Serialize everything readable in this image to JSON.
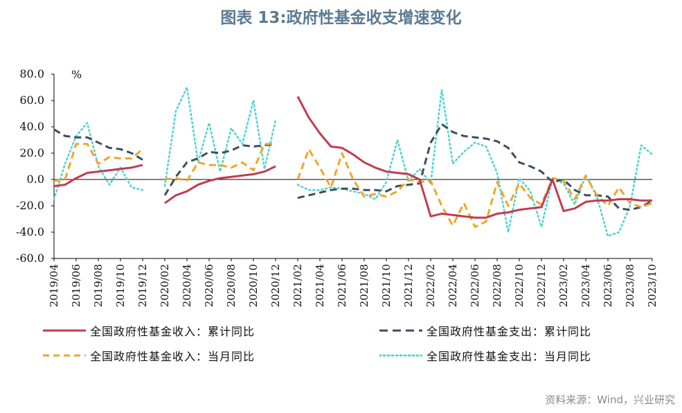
{
  "title": "图表 13:政府性基金收支增速变化",
  "source": "资料来源：Wind，兴业研究",
  "colors": {
    "revenue_cum": "#c23b4f",
    "expense_cum": "#3b4d63",
    "revenue_month": "#f0a528",
    "expense_month": "#55d3d3"
  },
  "chart_data": {
    "type": "line",
    "ylabel": "%",
    "ylim": [
      -60,
      80
    ],
    "yticks": [
      "80.0",
      "60.0",
      "40.0",
      "20.0",
      "0.0",
      "-20.0",
      "-40.0",
      "-60.0"
    ],
    "x": [
      "2019/04",
      "2019/05",
      "2019/06",
      "2019/07",
      "2019/08",
      "2019/09",
      "2019/10",
      "2019/11",
      "2019/12",
      "2020/01",
      "2020/02",
      "2020/03",
      "2020/04",
      "2020/05",
      "2020/06",
      "2020/07",
      "2020/08",
      "2020/09",
      "2020/10",
      "2020/11",
      "2020/12",
      "2021/01",
      "2021/02",
      "2021/03",
      "2021/04",
      "2021/05",
      "2021/06",
      "2021/07",
      "2021/08",
      "2021/09",
      "2021/10",
      "2021/11",
      "2021/12",
      "2022/01",
      "2022/02",
      "2022/03",
      "2022/04",
      "2022/05",
      "2022/06",
      "2022/07",
      "2022/08",
      "2022/09",
      "2022/10",
      "2022/11",
      "2022/12",
      "2023/01",
      "2023/02",
      "2023/03",
      "2023/04",
      "2023/05",
      "2023/06",
      "2023/07",
      "2023/08",
      "2023/09",
      "2023/10"
    ],
    "xtick_labels": [
      "2019/04",
      "2019/06",
      "2019/08",
      "2019/10",
      "2019/12",
      "2020/02",
      "2020/04",
      "2020/06",
      "2020/08",
      "2020/10",
      "2020/12",
      "2021/02",
      "2021/04",
      "2021/06",
      "2021/08",
      "2021/10",
      "2021/12",
      "2022/02",
      "2022/04",
      "2022/06",
      "2022/08",
      "2022/10",
      "2022/12",
      "2023/02",
      "2023/04",
      "2023/06",
      "2023/08",
      "2023/10"
    ],
    "grid": false,
    "legend_position": "bottom",
    "series": [
      {
        "name": "全国政府性基金收入：累计同比",
        "style": "solid",
        "values": [
          -5,
          -4,
          1,
          5,
          6,
          7,
          8,
          9,
          11,
          null,
          -18,
          -12,
          -9,
          -4,
          -1,
          1,
          2,
          3,
          4,
          6,
          10,
          null,
          63,
          47,
          35,
          25,
          24,
          19,
          13,
          9,
          6,
          5,
          4,
          0,
          -28,
          -26,
          -27,
          -28,
          -29,
          -29,
          -26,
          -25,
          -23,
          -22,
          -21,
          0,
          -24,
          -22,
          -17,
          -16,
          -16,
          -15,
          -15,
          -16,
          -16
        ]
      },
      {
        "name": "全国政府性基金支出：累计同比",
        "style": "dashed",
        "values": [
          38,
          33,
          32,
          32,
          28,
          24,
          23,
          20,
          15,
          null,
          -12,
          2,
          13,
          16,
          21,
          20,
          22,
          26,
          25,
          26,
          27,
          null,
          -14,
          -12,
          -10,
          -8,
          -7,
          -7,
          -8,
          -8,
          -9,
          -5,
          -4,
          -3,
          28,
          42,
          36,
          33,
          32,
          31,
          29,
          24,
          13,
          10,
          6,
          -2,
          0,
          -8,
          -12,
          -12,
          -13,
          -22,
          -23,
          -21,
          -16
        ]
      },
      {
        "name": "全国政府性基金收入：当月同比",
        "style": "dashed",
        "values": [
          -1,
          0,
          27,
          27,
          12,
          17,
          16,
          16,
          23,
          null,
          0,
          1,
          -1,
          13,
          11,
          11,
          9,
          13,
          7,
          27,
          27,
          null,
          0,
          23,
          9,
          -6,
          20,
          0,
          -13,
          -11,
          -13,
          -9,
          0,
          -2,
          -1,
          -20,
          -35,
          -18,
          -36,
          -32,
          -2,
          -20,
          -3,
          -14,
          -19,
          1,
          -1,
          -15,
          3,
          -12,
          -20,
          -6,
          -18,
          -21,
          -18
        ]
      },
      {
        "name": "全国政府性基金支出：当月同比",
        "style": "dotted",
        "values": [
          -15,
          12,
          33,
          43,
          10,
          -4,
          9,
          -6,
          -8,
          null,
          -5,
          52,
          70,
          13,
          43,
          6,
          39,
          27,
          60,
          8,
          45,
          null,
          -4,
          -8,
          -8,
          -6,
          -7,
          -9,
          -11,
          -15,
          -2,
          30,
          -1,
          8,
          -3,
          68,
          12,
          21,
          28,
          25,
          5,
          -40,
          1,
          -9,
          -36,
          1,
          -3,
          -19,
          3,
          -13,
          -43,
          -40,
          -20,
          26,
          19
        ]
      }
    ]
  }
}
